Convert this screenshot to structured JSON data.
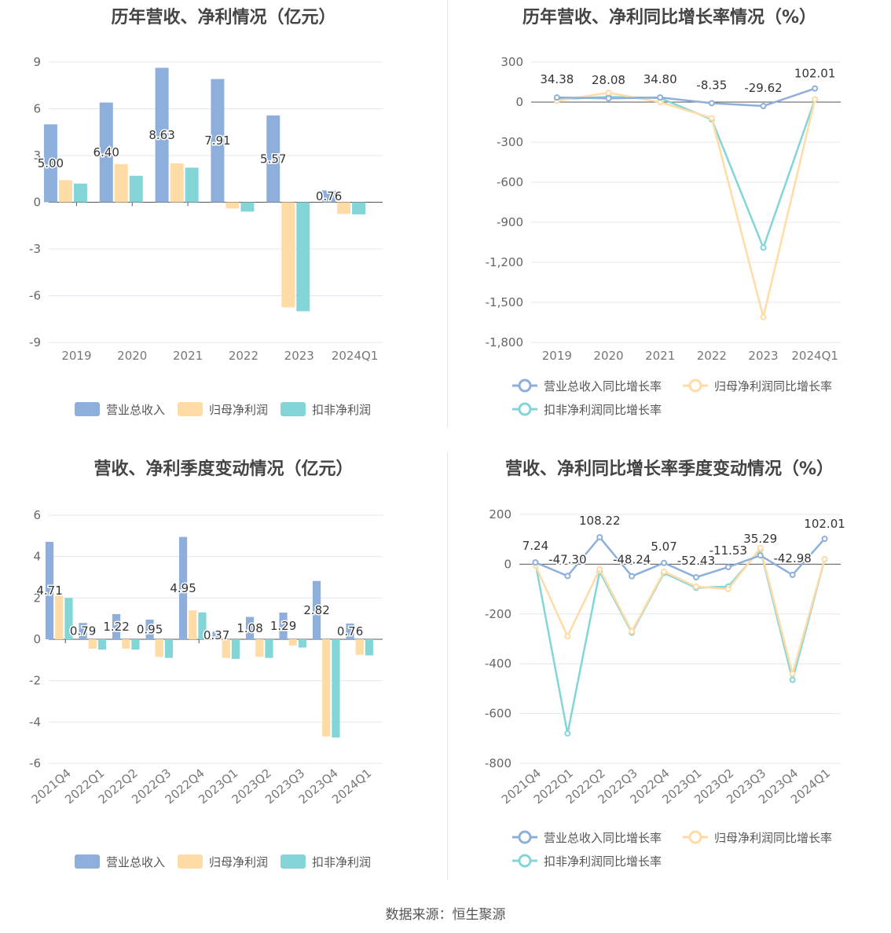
{
  "source": "数据来源：恒生聚源",
  "colors": {
    "revenue": "#8eaedc",
    "net": "#ffdba5",
    "deducted": "#83d5d8",
    "grid": "#e4e6ef",
    "axis": "#555555"
  },
  "chart_data": [
    {
      "type": "bar",
      "title": "历年营收、净利情况（亿元）",
      "categories": [
        "2019",
        "2020",
        "2021",
        "2022",
        "2023",
        "2024Q1"
      ],
      "yticks": [
        "9",
        "6",
        "3",
        "0",
        "-3",
        "-6",
        "-9"
      ],
      "ylim": [
        -9,
        9
      ],
      "series": [
        {
          "name": "营业总收入",
          "values": [
            5.0,
            6.4,
            8.63,
            7.91,
            5.57,
            0.76
          ]
        },
        {
          "name": "归母净利润",
          "values": [
            1.42,
            2.45,
            2.5,
            -0.4,
            -6.75,
            -0.75
          ]
        },
        {
          "name": "扣非净利润",
          "values": [
            1.2,
            1.7,
            2.22,
            -0.6,
            -7.0,
            -0.78
          ]
        }
      ],
      "labels": [
        "5.00",
        "6.40",
        "8.63",
        "7.91",
        "5.57",
        "0.76"
      ],
      "legend": "bottom"
    },
    {
      "type": "line",
      "title": "历年营收、净利同比增长率情况（%）",
      "categories": [
        "2019",
        "2020",
        "2021",
        "2022",
        "2023",
        "2024Q1"
      ],
      "yticks": [
        "300",
        "0",
        "-300",
        "-600",
        "-900",
        "-1,200",
        "-1,500",
        "-1,800"
      ],
      "ylim": [
        -1800,
        300
      ],
      "series": [
        {
          "name": "营业总收入同比增长率",
          "values": [
            34.38,
            28.08,
            34.8,
            -8.35,
            -29.62,
            102.01
          ]
        },
        {
          "name": "归母净利润同比增长率",
          "values": [
            10,
            70,
            0,
            -120,
            -1610,
            20
          ]
        },
        {
          "name": "扣非净利润同比增长率",
          "values": [
            20,
            40,
            30,
            -130,
            -1090,
            20
          ]
        }
      ],
      "labels": [
        "34.38",
        "28.08",
        "34.80",
        "-8.35",
        "-29.62",
        "102.01"
      ],
      "legend": "bottom"
    },
    {
      "type": "bar",
      "title": "营收、净利季度变动情况（亿元）",
      "categories": [
        "2021Q4",
        "2022Q1",
        "2022Q2",
        "2022Q3",
        "2022Q4",
        "2023Q1",
        "2023Q2",
        "2023Q3",
        "2023Q4",
        "2024Q1"
      ],
      "yticks": [
        "6",
        "4",
        "2",
        "0",
        "-2",
        "-4",
        "-6"
      ],
      "ylim": [
        -6,
        6
      ],
      "series": [
        {
          "name": "营业总收入",
          "values": [
            4.71,
            0.79,
            1.22,
            0.95,
            4.95,
            0.37,
            1.08,
            1.29,
            2.82,
            0.76
          ]
        },
        {
          "name": "归母净利润",
          "values": [
            2.1,
            -0.45,
            -0.45,
            -0.85,
            1.4,
            -0.9,
            -0.85,
            -0.3,
            -4.7,
            -0.75
          ]
        },
        {
          "name": "扣非净利润",
          "values": [
            2.0,
            -0.5,
            -0.5,
            -0.9,
            1.3,
            -0.95,
            -0.9,
            -0.4,
            -4.75,
            -0.78
          ]
        }
      ],
      "labels": [
        "4.71",
        "0.79",
        "1.22",
        "0.95",
        "4.95",
        "0.37",
        "1.08",
        "1.29",
        "2.82",
        "0.76"
      ],
      "legend": "bottom"
    },
    {
      "type": "line",
      "title": "营收、净利同比增长率季度变动情况（%）",
      "categories": [
        "2021Q4",
        "2022Q1",
        "2022Q2",
        "2022Q3",
        "2022Q4",
        "2023Q1",
        "2023Q2",
        "2023Q3",
        "2023Q4",
        "2024Q1"
      ],
      "yticks": [
        "200",
        "0",
        "-200",
        "-400",
        "-600",
        "-800"
      ],
      "ylim": [
        -800,
        200
      ],
      "series": [
        {
          "name": "营业总收入同比增长率",
          "values": [
            7.24,
            -47.3,
            108.22,
            -48.24,
            5.07,
            -52.43,
            -11.53,
            35.29,
            -42.98,
            102.01
          ]
        },
        {
          "name": "归母净利润同比增长率",
          "values": [
            -5,
            -290,
            -20,
            -270,
            -30,
            -90,
            -100,
            65,
            -440,
            20
          ]
        },
        {
          "name": "扣非净利润同比增长率",
          "values": [
            5,
            -680,
            -30,
            -275,
            -35,
            -95,
            -90,
            60,
            -465,
            20
          ]
        }
      ],
      "labels": [
        "7.24",
        "-47.30",
        "108.22",
        "-48.24",
        "5.07",
        "-52.43",
        "-11.53",
        "35.29",
        "-42.98",
        "102.01"
      ],
      "legend": "bottom"
    }
  ]
}
